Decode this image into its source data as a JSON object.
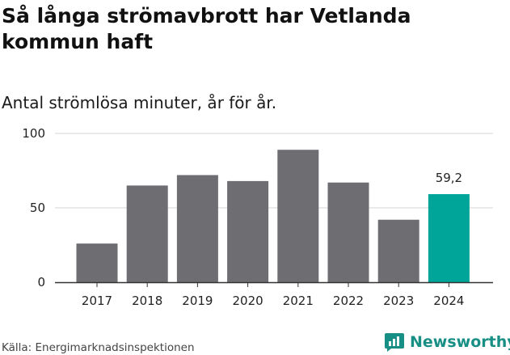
{
  "page": {
    "title": "Så långa strömavbrott har Vetlanda kommun haft",
    "subtitle": "Antal strömlösa minuter, år för år.",
    "source": "Källa: Energimarknadsinspektionen",
    "brand": "Newsworthy"
  },
  "colors": {
    "bar": "#6e6d72",
    "highlight": "#00a59a",
    "gridline": "#d6d6d6",
    "axis": "#333333",
    "brand": "#178f84"
  },
  "chart_data": {
    "type": "bar",
    "title": "Så långa strömavbrott har Vetlanda kommun haft",
    "subtitle": "Antal strömlösa minuter, år för år.",
    "xlabel": "",
    "ylabel": "",
    "categories": [
      "2017",
      "2018",
      "2019",
      "2020",
      "2021",
      "2022",
      "2023",
      "2024"
    ],
    "values": [
      26,
      65,
      72,
      68,
      89,
      67,
      42,
      59.2
    ],
    "ylim": [
      0,
      100
    ],
    "yticks": [
      0,
      50,
      100
    ],
    "grid": true,
    "highlight_index": 7,
    "data_labels": [
      {
        "category": "2024",
        "label": "59,2"
      }
    ]
  }
}
